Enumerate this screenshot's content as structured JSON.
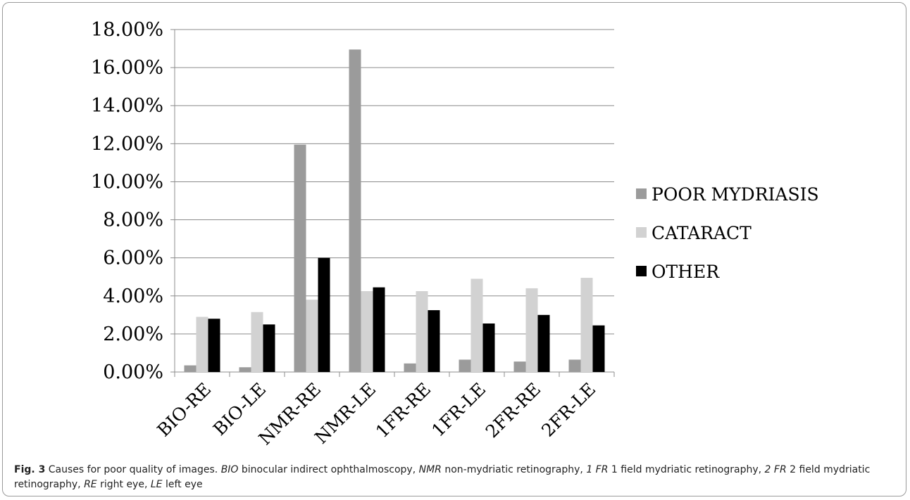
{
  "chart_data": {
    "type": "bar",
    "categories": [
      "BIO-RE",
      "BIO-LE",
      "NMR-RE",
      "NMR-LE",
      "1FR-RE",
      "1FR-LE",
      "2FR-RE",
      "2FR-LE"
    ],
    "series": [
      {
        "name": "POOR MYDRIASIS",
        "color": "#9b9b9b",
        "values": [
          0.35,
          0.25,
          11.95,
          16.95,
          0.45,
          0.65,
          0.55,
          0.65
        ]
      },
      {
        "name": "CATARACT",
        "color": "#d2d2d2",
        "values": [
          2.9,
          3.15,
          3.8,
          4.25,
          4.25,
          4.9,
          4.4,
          4.95
        ]
      },
      {
        "name": "OTHER",
        "color": "#000000",
        "values": [
          2.8,
          2.5,
          6.0,
          4.45,
          3.25,
          2.55,
          3.0,
          2.45
        ]
      }
    ],
    "ylim": [
      0,
      18
    ],
    "yticks": [
      "0.00%",
      "2.00%",
      "4.00%",
      "6.00%",
      "8.00%",
      "10.00%",
      "12.00%",
      "14.00%",
      "16.00%",
      "18.00%"
    ],
    "grid": true,
    "legend": "right"
  },
  "caption": {
    "label": "Fig. 3",
    "title": "Causes for poor quality of images.",
    "defs": [
      {
        "abbr": "BIO",
        "text": "binocular indirect ophthalmoscopy,"
      },
      {
        "abbr": "NMR",
        "text": "non-mydriatic retinography,"
      },
      {
        "abbr": "1 FR",
        "text": "1 field mydriatic retinography,"
      },
      {
        "abbr": "2 FR",
        "text": "2 field mydriatic retinography,"
      },
      {
        "abbr": "RE",
        "text": "right eye,"
      },
      {
        "abbr": "LE",
        "text": "left eye"
      }
    ]
  }
}
